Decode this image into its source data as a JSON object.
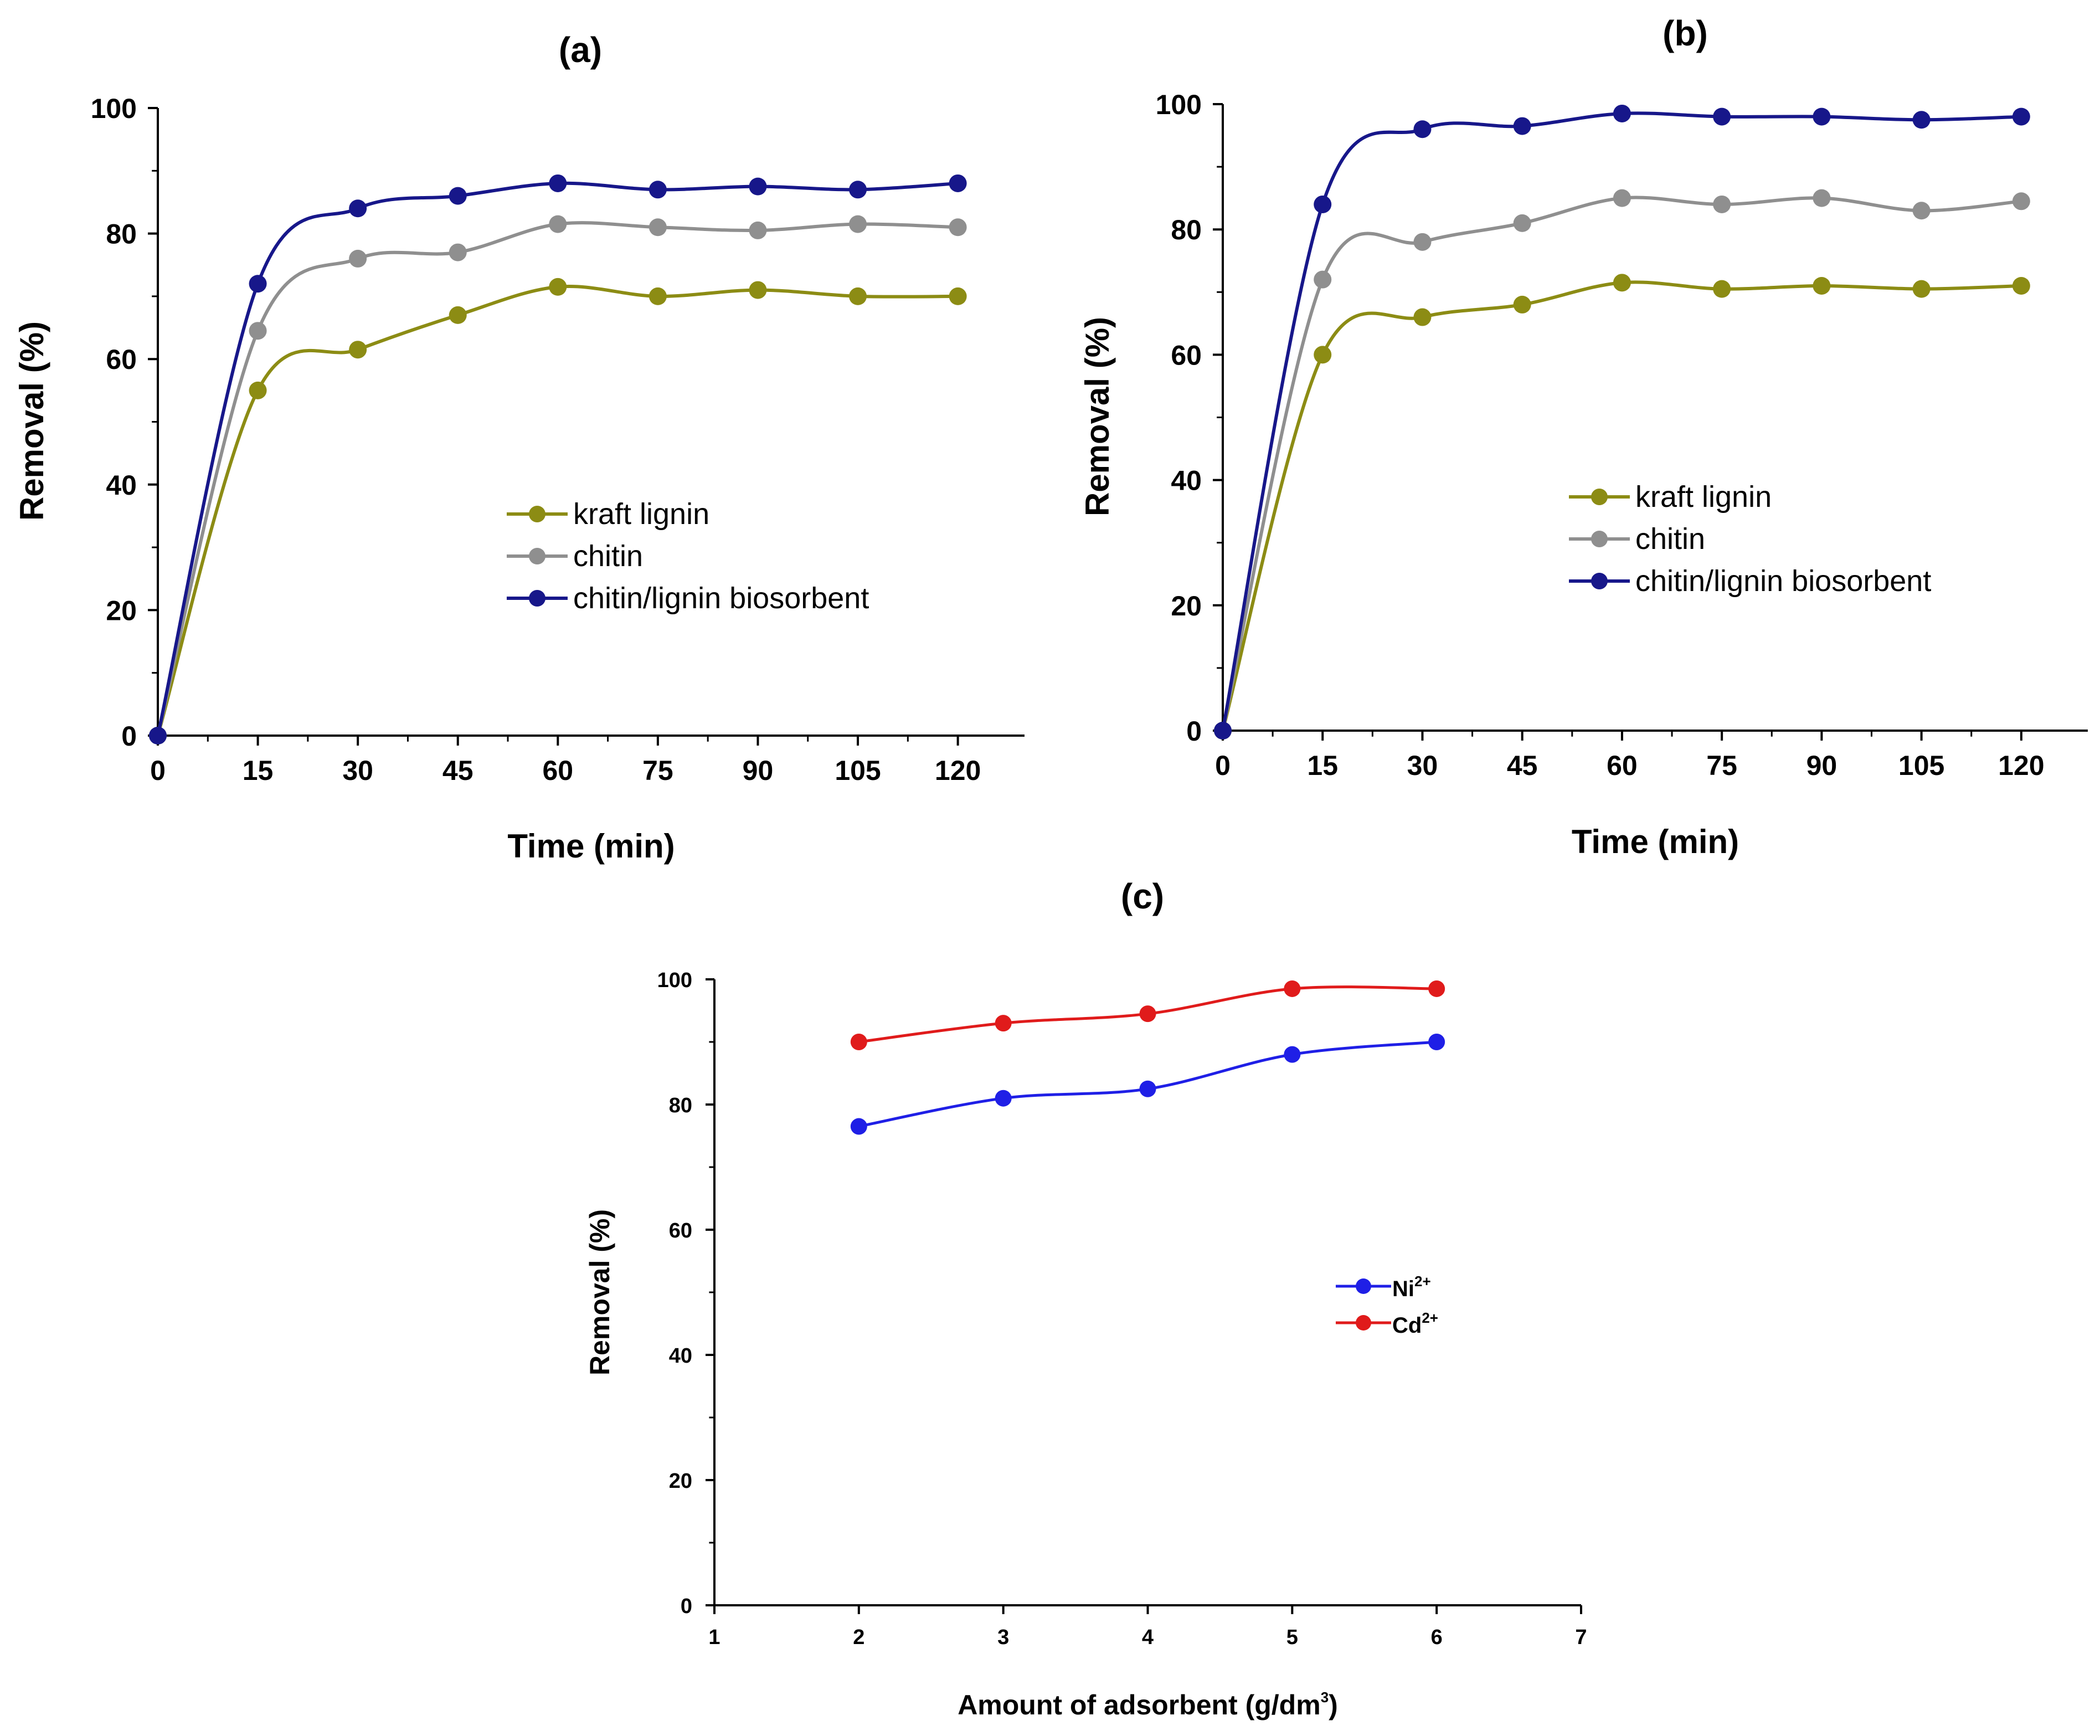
{
  "colors": {
    "kraft_lignin": "#8c8c14",
    "chitin": "#8f8f8f",
    "biosorbent": "#17178a",
    "ni": "#1f1fe6",
    "cd": "#e01b1b",
    "axis": "#000000"
  },
  "chart_data": [
    {
      "type": "line",
      "panel": "(a)",
      "title": "(a)",
      "xlabel": "Time (min)",
      "ylabel": "Removal (%)",
      "x": [
        0,
        15,
        30,
        45,
        60,
        75,
        90,
        105,
        120
      ],
      "xlim": [
        0,
        130
      ],
      "ylim": [
        0,
        100
      ],
      "xticks": [
        "0",
        "15",
        "30",
        "45",
        "60",
        "75",
        "90",
        "105",
        "120"
      ],
      "yticks": [
        "0",
        "20",
        "40",
        "60",
        "80",
        "100"
      ],
      "legend_position": "center-right",
      "series": [
        {
          "name": "kraft lignin",
          "color_key": "kraft_lignin",
          "values": [
            0,
            55,
            61.5,
            67,
            71.5,
            70,
            71,
            70,
            70
          ]
        },
        {
          "name": "chitin",
          "color_key": "chitin",
          "values": [
            0,
            64.5,
            76,
            77,
            81.5,
            81,
            80.5,
            81.5,
            81
          ]
        },
        {
          "name": "chitin/lignin biosorbent",
          "color_key": "biosorbent",
          "values": [
            0,
            72,
            84,
            86,
            88,
            87,
            87.5,
            87,
            88
          ]
        }
      ]
    },
    {
      "type": "line",
      "panel": "(b)",
      "title": "(b)",
      "xlabel": "Time (min)",
      "ylabel": "Removal (%)",
      "x": [
        0,
        15,
        30,
        45,
        60,
        75,
        90,
        105,
        120
      ],
      "xlim": [
        0,
        130
      ],
      "ylim": [
        0,
        100
      ],
      "xticks": [
        "0",
        "15",
        "30",
        "45",
        "60",
        "75",
        "90",
        "105",
        "120"
      ],
      "yticks": [
        "0",
        "20",
        "40",
        "60",
        "80",
        "100"
      ],
      "legend_position": "center-right",
      "series": [
        {
          "name": "kraft lignin",
          "color_key": "kraft_lignin",
          "values": [
            0,
            60,
            66,
            68,
            71.5,
            70.5,
            71,
            70.5,
            71
          ]
        },
        {
          "name": "chitin",
          "color_key": "chitin",
          "values": [
            0,
            72,
            78,
            81,
            85,
            84,
            85,
            83,
            84.5
          ]
        },
        {
          "name": "chitin/lignin biosorbent",
          "color_key": "biosorbent",
          "values": [
            0,
            84,
            96,
            96.5,
            98.5,
            98,
            98,
            97.5,
            98
          ]
        }
      ]
    },
    {
      "type": "line",
      "panel": "(c)",
      "title": "(c)",
      "xlabel": "Amount of adsorbent (g/dm",
      "xlabel_sup": "3",
      "xlabel_end": ")",
      "ylabel": "Removal (%)",
      "x": [
        2,
        3,
        4,
        5,
        6
      ],
      "xlim": [
        1,
        7
      ],
      "ylim": [
        0,
        100
      ],
      "xticks": [
        "1",
        "2",
        "3",
        "4",
        "5",
        "6",
        "7"
      ],
      "yticks": [
        "0",
        "20",
        "40",
        "60",
        "80",
        "100"
      ],
      "legend_position": "center-right",
      "series": [
        {
          "name": "Ni",
          "sup": "2+",
          "color_key": "ni",
          "values": [
            76.5,
            81,
            82.5,
            88,
            90
          ]
        },
        {
          "name": "Cd",
          "sup": "2+",
          "color_key": "cd",
          "values": [
            90,
            93,
            94.5,
            98.5,
            98.5
          ]
        }
      ]
    }
  ]
}
